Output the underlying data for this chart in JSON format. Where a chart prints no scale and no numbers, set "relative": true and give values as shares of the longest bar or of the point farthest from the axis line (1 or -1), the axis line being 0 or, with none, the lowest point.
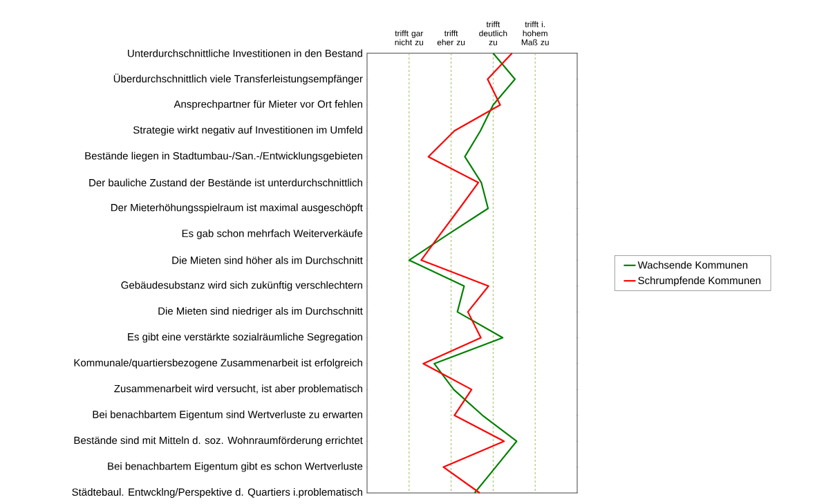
{
  "chart_data": {
    "type": "line",
    "orientation": "horizontal",
    "relative": true,
    "categories": [
      "Unterdurchschnittliche Investitionen in den Bestand",
      "Überdurchschnittlich viele Transferleistungsempfänger",
      "Ansprechpartner für Mieter vor Ort fehlen",
      "Strategie wirkt negativ auf Investitionen im Umfeld",
      "Bestände liegen in Stadtumbau-/San.-/Entwicklungsgebieten",
      "Der bauliche Zustand der Bestände ist unterdurchschnittlich",
      "Der Mieterhöhungsspielraum ist maximal ausgeschöpft",
      "Es gab schon mehrfach Weiterverkäufe",
      "Die Mieten sind höher als im Durchschnitt",
      "Gebäudesubstanz wird sich zukünftig verschlechtern",
      "Die Mieten sind niedriger als im Durchschnitt",
      "Es gibt eine verstärkte sozialräumliche Segregation",
      "Kommunale/quartiersbezogene Zusammenarbeit ist erfolgreich",
      "Zusammenarbeit wird versucht, ist aber problematisch",
      "Bei benachbartem Eigentum sind Wertverluste zu erwarten",
      "Bestände sind mit Mitteln d. soz. Wohnraumförderung errichtet",
      "Bei benachbartem Eigentum gibt es schon Wertverluste",
      "Städtebaul. Entwcklng/Perspektive d. Quartiers i.problematisch"
    ],
    "series": [
      {
        "name": "Wachsende Kommunen",
        "color": "#008000",
        "values": [
          0.843,
          0.989,
          0.843,
          0.758,
          0.654,
          0.764,
          0.809,
          0.542,
          0.281,
          0.649,
          0.604,
          0.907,
          0.449,
          0.579,
          0.772,
          1.0,
          0.86,
          0.719
        ]
      },
      {
        "name": "Schrumpfende Kommunen",
        "color": "#ff0000",
        "values": [
          0.969,
          0.806,
          0.89,
          0.584,
          0.41,
          0.744,
          0.618,
          0.489,
          0.362,
          0.812,
          0.674,
          0.761,
          0.376,
          0.699,
          0.584,
          0.916,
          0.511,
          0.753
        ]
      }
    ],
    "ref_lines": [
      {
        "axis": "x",
        "value": 0.281,
        "label": "trifft gar nicht zu",
        "color": "#9bbb59",
        "line_style": "dashed"
      },
      {
        "axis": "x",
        "value": 0.562,
        "label": "trifft eher zu",
        "color": "#9bbb59",
        "line_style": "dashed"
      },
      {
        "axis": "x",
        "value": 0.843,
        "label": "trifft deutlich zu",
        "color": "#9bbb59",
        "line_style": "dashed"
      },
      {
        "axis": "x",
        "value": 1.124,
        "label": "trifft i. hohem Maß zu",
        "color": "#9bbb59",
        "line_style": "dashed"
      }
    ],
    "legend": "right",
    "marker": "none",
    "line_style": "solid"
  }
}
